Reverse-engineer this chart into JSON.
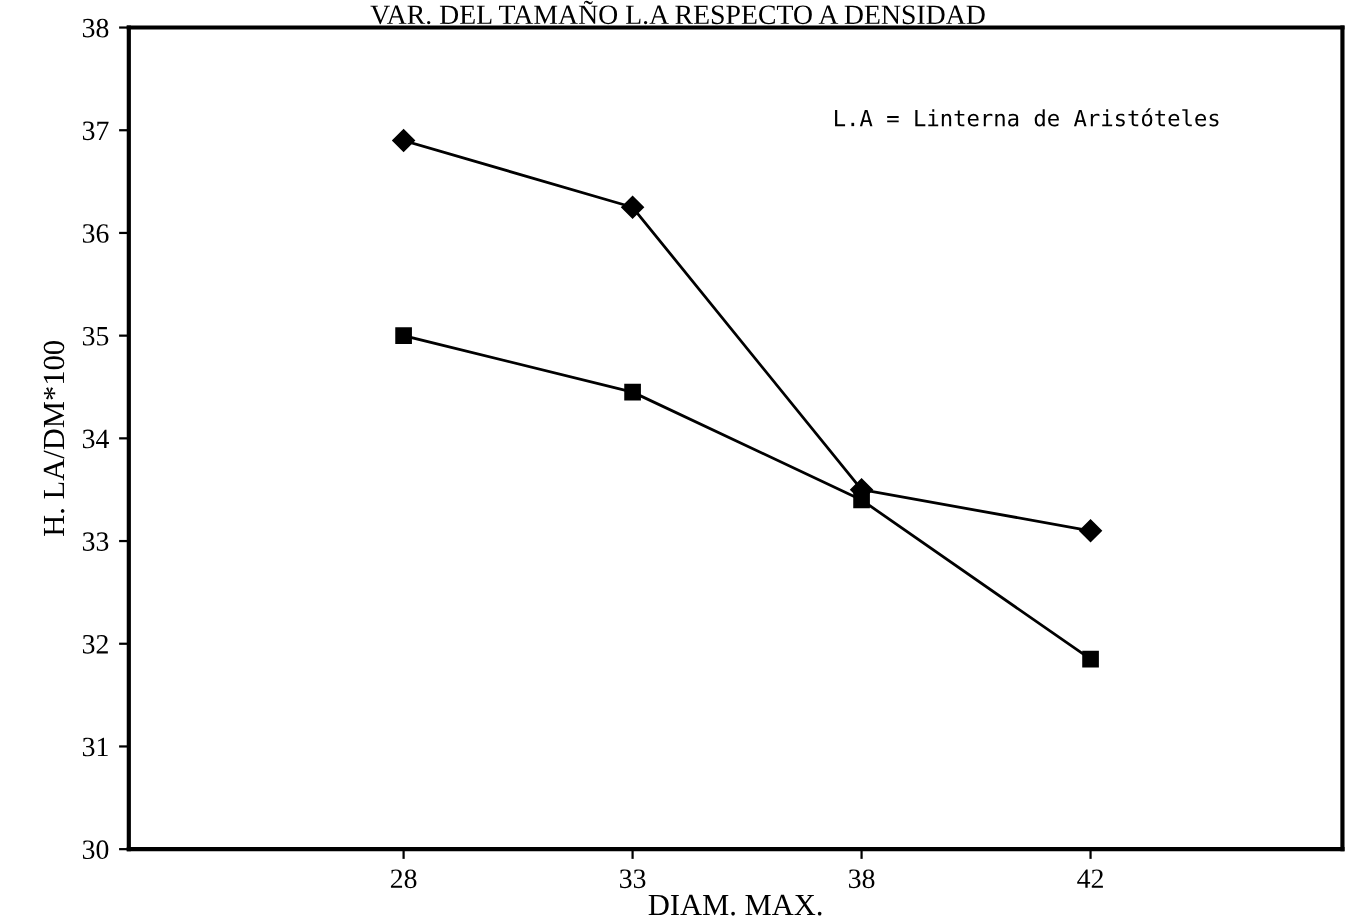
{
  "chart_data": {
    "type": "line",
    "title": "VAR. DEL TAMAÑO L.A RESPECTO A DENSIDAD",
    "xlabel": "DIAM. MAX.",
    "ylabel": "H. LA/DM*100",
    "categories": [
      "28",
      "33",
      "38",
      "42"
    ],
    "series": [
      {
        "color": "#000000",
        "marker": "diamond",
        "values": [
          36.9,
          36.25,
          33.5,
          33.1
        ]
      },
      {
        "color": "#000000",
        "marker": "square",
        "values": [
          35.0,
          34.45,
          33.4,
          31.85
        ]
      }
    ],
    "ylim": [
      30,
      38
    ],
    "yticks": [
      30,
      31,
      32,
      33,
      34,
      35,
      36,
      37,
      38
    ],
    "grid": false,
    "line_style": "solid",
    "annotations": [
      "L.A = Linterna de Aristóteles"
    ]
  }
}
